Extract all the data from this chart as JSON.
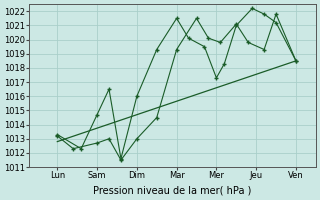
{
  "background_color": "#cce8e4",
  "grid_color": "#aacfca",
  "line_color": "#1a5c28",
  "x_labels": [
    "Lun",
    "Sam",
    "Dim",
    "Mar",
    "Mer",
    "Jeu",
    "Ven"
  ],
  "xlabel": "Pression niveau de la mer( hPa )",
  "ylim": [
    1011.0,
    1022.5
  ],
  "yticks": [
    1011,
    1012,
    1013,
    1014,
    1015,
    1016,
    1017,
    1018,
    1019,
    1020,
    1021,
    1022
  ],
  "xlim": [
    -0.2,
    7.0
  ],
  "x_positions": [
    0.5,
    1.5,
    2.5,
    3.5,
    4.5,
    5.5,
    6.5
  ],
  "line1_x": [
    0.5,
    0.9,
    1.5,
    1.8,
    2.1,
    2.5,
    3.0,
    3.5,
    4.0,
    4.3,
    4.6,
    5.0,
    5.3,
    5.7,
    6.0,
    6.5
  ],
  "line1_y": [
    1013.2,
    1012.3,
    1012.7,
    1013.0,
    1011.5,
    1013.0,
    1014.5,
    1019.3,
    1021.5,
    1020.1,
    1019.8,
    1021.1,
    1019.8,
    1019.3,
    1021.8,
    1018.5
  ],
  "line2_x": [
    0.5,
    1.1,
    1.5,
    1.8,
    2.1,
    2.5,
    3.0,
    3.5,
    3.8,
    4.2,
    4.5,
    4.7,
    5.0,
    5.4,
    5.7,
    6.0,
    6.5
  ],
  "line2_y": [
    1013.3,
    1012.3,
    1014.7,
    1016.5,
    1011.6,
    1016.0,
    1019.3,
    1021.5,
    1020.1,
    1019.5,
    1017.3,
    1018.3,
    1021.0,
    1022.2,
    1021.8,
    1021.2,
    1018.5
  ],
  "trend_x": [
    0.5,
    6.5
  ],
  "trend_y": [
    1012.8,
    1018.5
  ]
}
